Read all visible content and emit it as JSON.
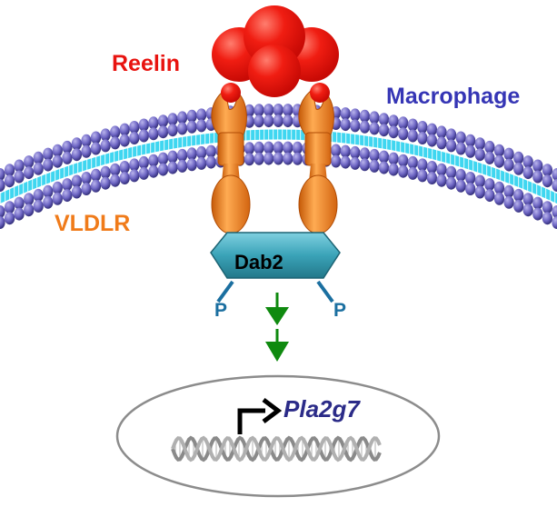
{
  "labels": {
    "reelin": "Reelin",
    "macrophage": "Macrophage",
    "vldlr": "VLDLR",
    "dab2": "Dab2",
    "phospho_left": "P",
    "phospho_right": "P",
    "gene": "Pla2g7"
  },
  "colors": {
    "reelin": "#e8130f",
    "macrophage": "#3535b5",
    "vldlr": "#f07b1a",
    "dab2_fill": "#3aa3b8",
    "phospho": "#1b6fa0",
    "lipid_head": "#6e66c4",
    "lipid_tail": "#3fd6f0",
    "arrow": "#0f8a0f",
    "gene": "#2b2b88"
  },
  "icons": {
    "reelin": "red-sphere-cluster-icon",
    "receptor": "vldlr-receptor-icon",
    "adaptor": "dab2-hexagon-icon",
    "signal": "green-arrow-down-icon",
    "transcription": "bent-arrow-icon",
    "dna": "dna-helix-icon",
    "nucleus": "nucleus-ellipse-icon"
  }
}
